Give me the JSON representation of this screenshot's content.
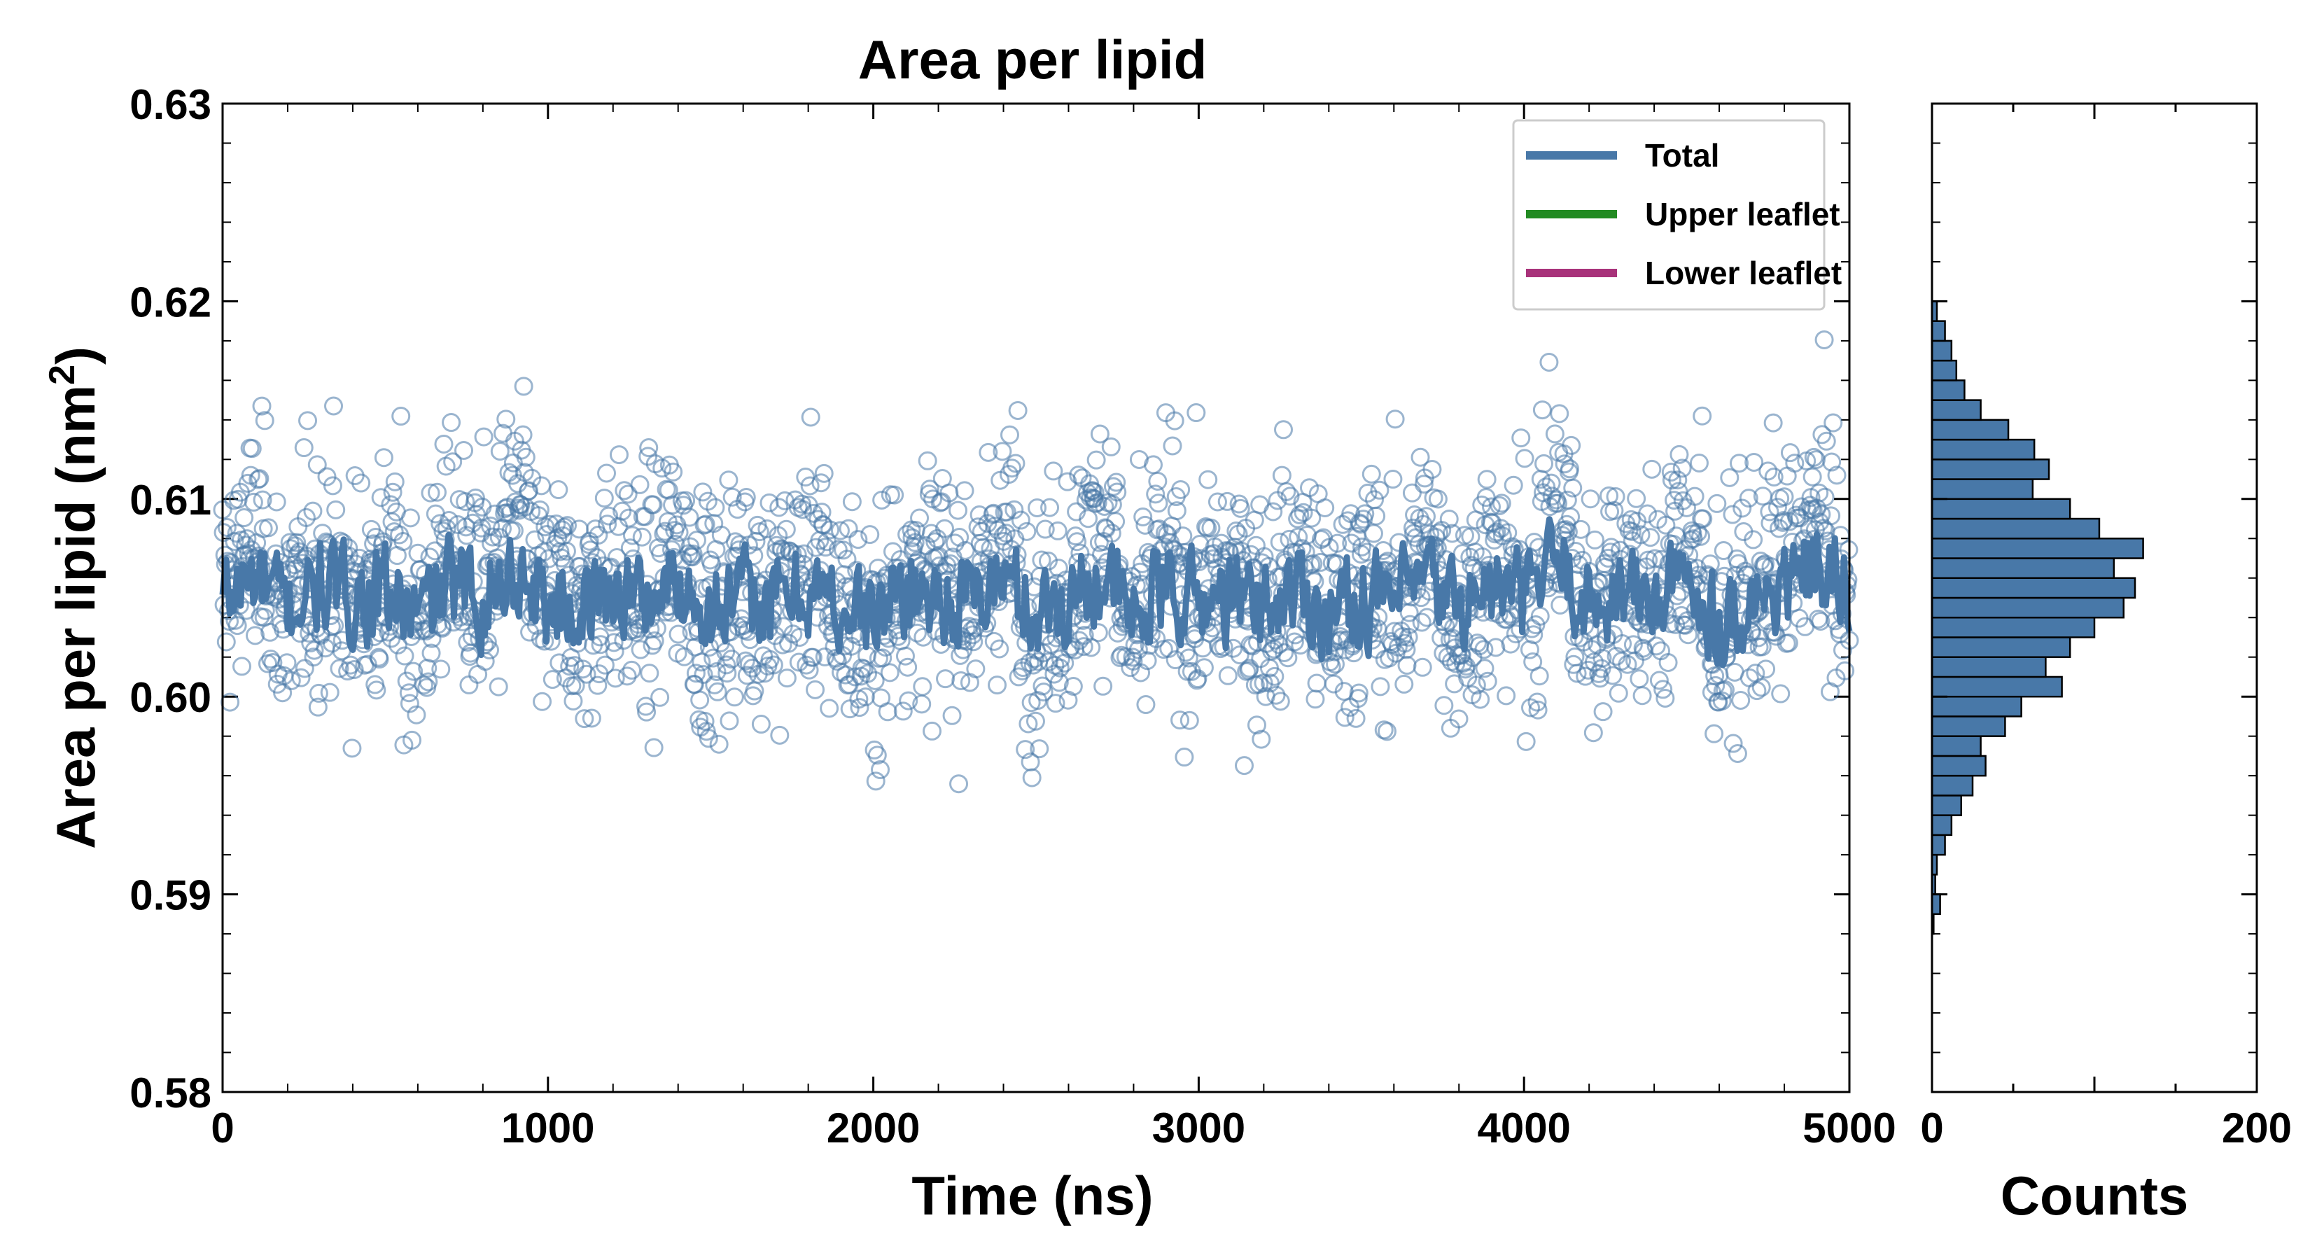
{
  "chart_data": [
    {
      "type": "scatter",
      "title": "Area per lipid",
      "xlabel": "Time (ns)",
      "ylabel": "Area per lipid (nm",
      "ylabel_superscript": "2",
      "ylabel_suffix": ")",
      "xlim": [
        0,
        5000
      ],
      "ylim": [
        0.58,
        0.63
      ],
      "x_ticks": [
        0,
        1000,
        2000,
        3000,
        4000,
        5000
      ],
      "x_tick_labels": [
        "0",
        "1000",
        "2000",
        "3000",
        "4000",
        "5000"
      ],
      "y_ticks": [
        0.58,
        0.59,
        0.6,
        0.61,
        0.62,
        0.63
      ],
      "y_tick_labels": [
        "0.58",
        "0.59",
        "0.60",
        "0.61",
        "0.62",
        "0.63"
      ],
      "legend_position": "top-right",
      "legend": [
        {
          "label": "Total",
          "color": "#4878a8"
        },
        {
          "label": "Upper leaflet",
          "color": "#228b22"
        },
        {
          "label": "Lower leaflet",
          "color": "#a8327a"
        }
      ],
      "series": [
        {
          "name": "Total",
          "kind": "scatter",
          "marker": "open-circle",
          "color": "#4878a8",
          "x": [
            0,
            100,
            200,
            300,
            400,
            500,
            600,
            700,
            800,
            900,
            1000,
            1100,
            1200,
            1300,
            1400,
            1500,
            1600,
            1700,
            1800,
            1900,
            2000,
            2100,
            2200,
            2300,
            2400,
            2500,
            2600,
            2700,
            2800,
            2900,
            3000,
            3100,
            3200,
            3300,
            3400,
            3500,
            3600,
            3700,
            3800,
            3900,
            4000,
            4100,
            4200,
            4300,
            4400,
            4500,
            4600,
            4700,
            4800,
            4900,
            5000
          ],
          "y": [
            0.6055,
            0.6075,
            0.6045,
            0.6065,
            0.605,
            0.606,
            0.604,
            0.607,
            0.6055,
            0.6085,
            0.605,
            0.6045,
            0.606,
            0.605,
            0.607,
            0.604,
            0.6055,
            0.605,
            0.6065,
            0.6045,
            0.603,
            0.606,
            0.6055,
            0.605,
            0.6075,
            0.604,
            0.6055,
            0.6085,
            0.6035,
            0.6065,
            0.605,
            0.6055,
            0.6045,
            0.6065,
            0.604,
            0.6055,
            0.605,
            0.607,
            0.6045,
            0.606,
            0.6055,
            0.609,
            0.6045,
            0.606,
            0.605,
            0.6075,
            0.6035,
            0.605,
            0.6065,
            0.6085,
            0.605
          ],
          "note": "representative subset of the raw data cloud"
        },
        {
          "name": "Total",
          "kind": "line",
          "color": "#4878a8",
          "x": [
            0,
            100,
            200,
            300,
            400,
            500,
            600,
            700,
            800,
            900,
            1000,
            1100,
            1200,
            1300,
            1400,
            1500,
            1600,
            1700,
            1800,
            1900,
            2000,
            2100,
            2200,
            2300,
            2400,
            2500,
            2600,
            2700,
            2800,
            2900,
            3000,
            3100,
            3200,
            3300,
            3400,
            3500,
            3600,
            3700,
            3800,
            3900,
            4000,
            4100,
            4200,
            4300,
            4400,
            4500,
            4600,
            4700,
            4800,
            4900,
            5000
          ],
          "y": [
            0.605,
            0.606,
            0.6045,
            0.6055,
            0.605,
            0.6052,
            0.604,
            0.6058,
            0.605,
            0.6065,
            0.6048,
            0.6045,
            0.6055,
            0.605,
            0.6058,
            0.6045,
            0.605,
            0.6048,
            0.6055,
            0.6045,
            0.604,
            0.6055,
            0.605,
            0.6048,
            0.606,
            0.6042,
            0.605,
            0.6062,
            0.604,
            0.6055,
            0.6048,
            0.605,
            0.6045,
            0.6055,
            0.6042,
            0.605,
            0.6048,
            0.6058,
            0.6045,
            0.6055,
            0.605,
            0.607,
            0.6045,
            0.6055,
            0.6048,
            0.606,
            0.604,
            0.6048,
            0.6055,
            0.6065,
            0.6048
          ]
        }
      ]
    },
    {
      "type": "bar",
      "orientation": "horizontal",
      "xlabel": "Counts",
      "xlim": [
        0,
        200
      ],
      "x_ticks": [
        0,
        200
      ],
      "x_tick_labels": [
        "0",
        "200"
      ],
      "ylim": [
        0.58,
        0.63
      ],
      "color": "#4878a8",
      "edge_color": "#000000",
      "bin_centers": [
        0.5885,
        0.5895,
        0.5905,
        0.5915,
        0.5925,
        0.5935,
        0.5945,
        0.5955,
        0.5965,
        0.5975,
        0.5985,
        0.5995,
        0.6005,
        0.6015,
        0.6025,
        0.6035,
        0.6045,
        0.6055,
        0.6065,
        0.6075,
        0.6085,
        0.6095,
        0.6105,
        0.6115,
        0.6125,
        0.6135,
        0.6145,
        0.6155,
        0.6165,
        0.6175,
        0.6185,
        0.6195
      ],
      "values": [
        1,
        5,
        2,
        3,
        8,
        12,
        18,
        25,
        33,
        30,
        45,
        55,
        80,
        70,
        85,
        100,
        118,
        125,
        112,
        130,
        103,
        85,
        62,
        72,
        63,
        47,
        30,
        20,
        15,
        12,
        8,
        3
      ]
    }
  ]
}
